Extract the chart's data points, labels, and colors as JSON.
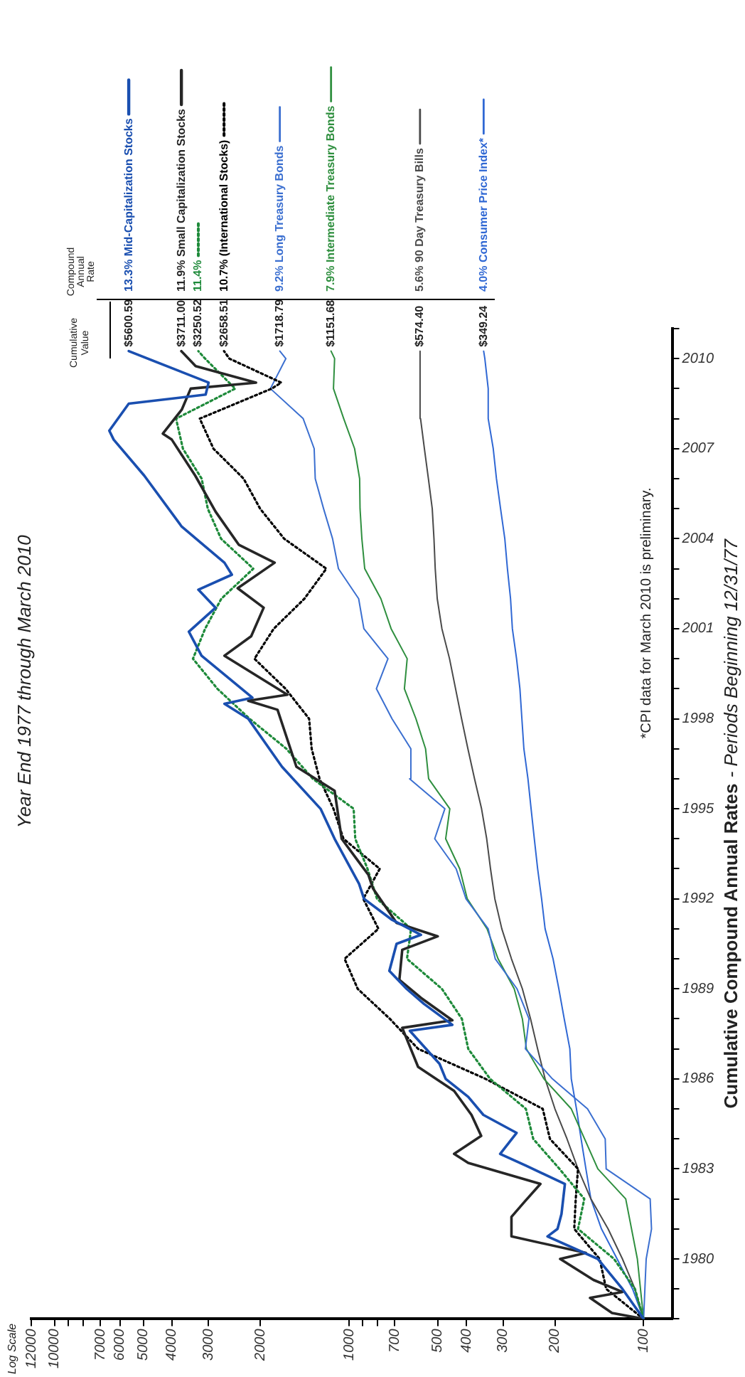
{
  "chart_data": {
    "type": "line",
    "title": "Cumulative Compound Annual Rates",
    "subtitle": "Year End 1977 through March 2010",
    "annotations": [
      "- Periods Beginning 12/31/77",
      "*CPI data for March 2010 is preliminary.",
      "Log Scale",
      "Cumulative Value",
      "Compound Annual Rate",
      {
        "text": "$5600.59",
        "x": 5600.59,
        "y": 2010.25
      },
      {
        "text": "$3711.00",
        "x": 3711.0,
        "y": 2010.25
      },
      {
        "text": "$3250.52",
        "x": 3250.52,
        "y": 2010.25
      },
      {
        "text": "$2658.51",
        "x": 2658.51,
        "y": 2010.25
      },
      {
        "text": "$1718.79",
        "x": 1718.79,
        "y": 2010.25
      },
      {
        "text": "$1151.68",
        "x": 1151.68,
        "y": 2010.25
      },
      {
        "text": "$574.40",
        "x": 574.4,
        "y": 2010.25
      },
      {
        "text": "$349.24",
        "x": 349.24,
        "y": 2010.25
      }
    ],
    "orientation": "horizontal",
    "log": "x",
    "grid": false,
    "legend": "top left",
    "marker": "none",
    "line_style": "solid",
    "ylim": [
      1978,
      2011
    ],
    "yticks": [
      {
        "value": 1978,
        "label": null
      },
      {
        "value": 1979,
        "label": null
      },
      1980,
      {
        "value": 1981,
        "label": null
      },
      {
        "value": 1982,
        "label": null
      },
      1983,
      {
        "value": 1984,
        "label": null
      },
      {
        "value": 1985,
        "label": null
      },
      1986,
      {
        "value": 1987,
        "label": null
      },
      {
        "value": 1988,
        "label": null
      },
      1989,
      {
        "value": 1990,
        "label": null
      },
      {
        "value": 1991,
        "label": null
      },
      1992,
      {
        "value": 1993,
        "label": null
      },
      {
        "value": 1994,
        "label": null
      },
      1995,
      {
        "value": 1996,
        "label": null
      },
      {
        "value": 1997,
        "label": null
      },
      1998,
      {
        "value": 1999,
        "label": null
      },
      {
        "value": 2000,
        "label": null
      },
      2001,
      {
        "value": 2002,
        "label": null
      },
      {
        "value": 2003,
        "label": null
      },
      2004,
      {
        "value": 2005,
        "label": null
      },
      {
        "value": 2006,
        "label": null
      },
      2007,
      {
        "value": 2008,
        "label": null
      },
      {
        "value": 2009,
        "label": null
      },
      2010,
      {
        "value": 2011,
        "label": null
      }
    ],
    "xlim": [
      12000,
      80
    ],
    "xticks": [
      100,
      200,
      300,
      400,
      500,
      700,
      {
        "value": 800,
        "label": null
      },
      {
        "value": 900,
        "label": null
      },
      1000,
      2000,
      3000,
      4000,
      5000,
      6000,
      7000,
      {
        "value": 8000,
        "label": null
      },
      {
        "value": 9000,
        "label": null
      },
      10000,
      12000
    ],
    "series": [
      {
        "name": "13.3% Mid-Capitalization Stocks",
        "color": "#1a4fb0",
        "x": [
          1978,
          1979,
          1980,
          1980.75,
          1981,
          1981.5,
          1982.5,
          1983.1,
          1983.5,
          1984.2,
          1984.8,
          1985.4,
          1986,
          1986.5,
          1987.6,
          1987.8,
          1988.5,
          1989,
          1989.6,
          1990.5,
          1990.8,
          1991.3,
          1992,
          1992.5,
          1994,
          1995,
          1996.4,
          1998,
          1998.5,
          1998.7,
          2000.1,
          2000.9,
          2001.7,
          2002.3,
          2002.8,
          2003.2,
          2004.4,
          2006.1,
          2007.3,
          2007.6,
          2008.5,
          2008.8,
          2009.2,
          2010.25
        ],
        "values": [
          100,
          118,
          143,
          212,
          196,
          190,
          185,
          250,
          307,
          270,
          350,
          394,
          470,
          493,
          622,
          446,
          557,
          638,
          730,
          690,
          570,
          715,
          890,
          925,
          1120,
          1250,
          1690,
          2200,
          2650,
          2130,
          3170,
          3500,
          2840,
          3250,
          2500,
          2650,
          3700,
          4960,
          6300,
          6520,
          5600,
          3070,
          3000,
          5600.59
        ]
      },
      {
        "name": "11.9% Small Capitalization Stocks",
        "color": "#262626",
        "x": [
          1978,
          1978.2,
          1978.7,
          1978.9,
          1979.3,
          1980,
          1980.2,
          1980.75,
          1981.4,
          1981.9,
          1982.5,
          1983.2,
          1983.5,
          1984.1,
          1984.8,
          1985.6,
          1986.4,
          1987.7,
          1987.95,
          1988.7,
          1989.3,
          1990.3,
          1990.75,
          1991.2,
          1992.35,
          1992.8,
          1994,
          1995.6,
          1996.4,
          1998.3,
          1998.6,
          1998.8,
          2000.1,
          2000.75,
          2001.7,
          2002.35,
          2003.2,
          2003.8,
          2004.9,
          2006.1,
          2007.3,
          2007.5,
          2008.3,
          2009,
          2009.2,
          2009.75,
          2010.25
        ],
        "values": [
          100,
          128,
          152,
          118,
          148,
          192,
          157,
          281,
          281,
          254,
          224,
          394,
          440,
          356,
          384,
          440,
          583,
          660,
          446,
          570,
          675,
          660,
          500,
          690,
          830,
          860,
          1060,
          1120,
          1510,
          1750,
          2200,
          1620,
          2650,
          2150,
          1950,
          2390,
          1790,
          2370,
          2840,
          3330,
          4000,
          4290,
          3700,
          3450,
          2070,
          3320,
          3711.0
        ]
      },
      {
        "name": "11.4%",
        "color": "#1e8a3a",
        "line_style": "dotted",
        "x": [
          1978,
          1979,
          1980,
          1981,
          1982,
          1983,
          1984,
          1985,
          1986,
          1987,
          1988,
          1989,
          1990,
          1991,
          1992,
          1993,
          1994,
          1995,
          1996,
          1997,
          1998,
          1999,
          2000,
          2001,
          2002,
          2003,
          2004,
          2005,
          2006,
          2007,
          2008,
          2009,
          2010,
          2010.25
        ],
        "values": [
          100,
          107,
          126,
          167,
          159,
          193,
          237,
          251,
          332,
          394,
          414,
          484,
          636,
          616,
          804,
          866,
          953,
          965,
          1328,
          1633,
          2178,
          2801,
          3390,
          3082,
          2715,
          2115,
          2722,
          3019,
          3167,
          3667,
          3869,
          2437,
          3083,
          3250.52
        ]
      },
      {
        "name": "10.7% (International Stocks)",
        "color": "#000000",
        "line_style": "dotted",
        "x": [
          1978,
          1979,
          1980,
          1981,
          1982,
          1983,
          1984,
          1985,
          1986,
          1987,
          1988,
          1989,
          1990,
          1991,
          1992,
          1993,
          1994,
          1995,
          1996,
          1997,
          1998,
          1999,
          2000,
          2001,
          2002,
          2003,
          2004,
          2005,
          2006,
          2007,
          2008,
          2009,
          2009.2,
          2010,
          2010.25
        ],
        "values": [
          100,
          134,
          141,
          172,
          170,
          167,
          208,
          220,
          344,
          583,
          727,
          935,
          1036,
          795,
          895,
          787,
          1045,
          1130,
          1260,
          1340,
          1367,
          1644,
          2096,
          1802,
          1418,
          1195,
          1662,
          2005,
          2281,
          2888,
          3214,
          1832,
          1700,
          2550,
          2658.51
        ]
      },
      {
        "name": "9.2% Long Treasury Bonds",
        "color": "#3b6fd0",
        "x": [
          1978,
          1979,
          1980,
          1981,
          1982,
          1983,
          1984,
          1985,
          1986,
          1987,
          1988,
          1989,
          1990,
          1991,
          1992,
          1993,
          1994,
          1995,
          1996,
          1997,
          1998,
          1999,
          2000,
          2001,
          2002,
          2003,
          2004,
          2005,
          2006,
          2007,
          2008,
          2009,
          2010,
          2010.25
        ],
        "values": [
          100,
          99,
          98,
          94,
          95,
          134,
          135,
          155,
          204,
          252,
          245,
          269,
          319,
          337,
          401,
          433,
          512,
          473,
          623,
          617,
          715,
          808,
          738,
          891,
          928,
          1087,
          1138,
          1221,
          1303,
          1314,
          1432,
          1850,
          1640,
          1718.79
        ]
      },
      {
        "name": "7.9% Intermediate Treasury Bonds",
        "color": "#2f8f3f",
        "x": [
          1978,
          1980,
          1982,
          1983,
          1985,
          1986,
          1987,
          1988,
          1989,
          1990,
          1991,
          1992,
          1993,
          1994,
          1995,
          1996,
          1997,
          1998,
          1999,
          2000,
          2001,
          2002,
          2003,
          2004,
          2005,
          2006,
          2007,
          2008,
          2009,
          2010,
          2010.25
        ],
        "values": [
          100,
          105,
          115,
          143,
          176,
          218,
          250,
          258,
          275,
          312,
          340,
          397,
          421,
          470,
          455,
          537,
          550,
          593,
          649,
          635,
          720,
          780,
          885,
          905,
          918,
          921,
          958,
          1043,
          1130,
          1120,
          1151.68
        ]
      },
      {
        "name": "5.6% 90 Day Treasury Bills",
        "color": "#4a4a4a",
        "x": [
          1978,
          1979,
          1980,
          1981,
          1982,
          1983,
          1984,
          1985,
          1986,
          1987,
          1988,
          1989,
          1990,
          1991,
          1992,
          1993,
          1994,
          1995,
          1996,
          1997,
          1998,
          1999,
          2000,
          2001,
          2002,
          2003,
          2004,
          2005,
          2006,
          2007,
          2008,
          2009,
          2010,
          2010.25
        ],
        "values": [
          100,
          107,
          118,
          132,
          151,
          167,
          182,
          200,
          216,
          229,
          242,
          258,
          281,
          303,
          320,
          331,
          341,
          355,
          375,
          395,
          415,
          435,
          456,
          484,
          502,
          510,
          515,
          522,
          538,
          555,
          572,
          574,
          574,
          574.4
        ]
      },
      {
        "name": "4.0% Consumer Price Index*",
        "color": "#3068d4",
        "x": [
          1978,
          1979,
          1980,
          1981,
          1982,
          1983,
          1984,
          1985,
          1986,
          1987,
          1988,
          1989,
          1990,
          1991,
          1992,
          1993,
          1994,
          1995,
          1996,
          1997,
          1998,
          1999,
          2000,
          2001,
          2002,
          2003,
          2004,
          2005,
          2006,
          2007,
          2008,
          2009,
          2010,
          2010.25
        ],
        "values": [
          100,
          109,
          123,
          139,
          151,
          157,
          163,
          169,
          176,
          178,
          186,
          194,
          203,
          216,
          222,
          229,
          235,
          241,
          247,
          255,
          259,
          263,
          270,
          279,
          283,
          290,
          296,
          306,
          316,
          324,
          337,
          337,
          346,
          349.24
        ]
      }
    ]
  }
}
